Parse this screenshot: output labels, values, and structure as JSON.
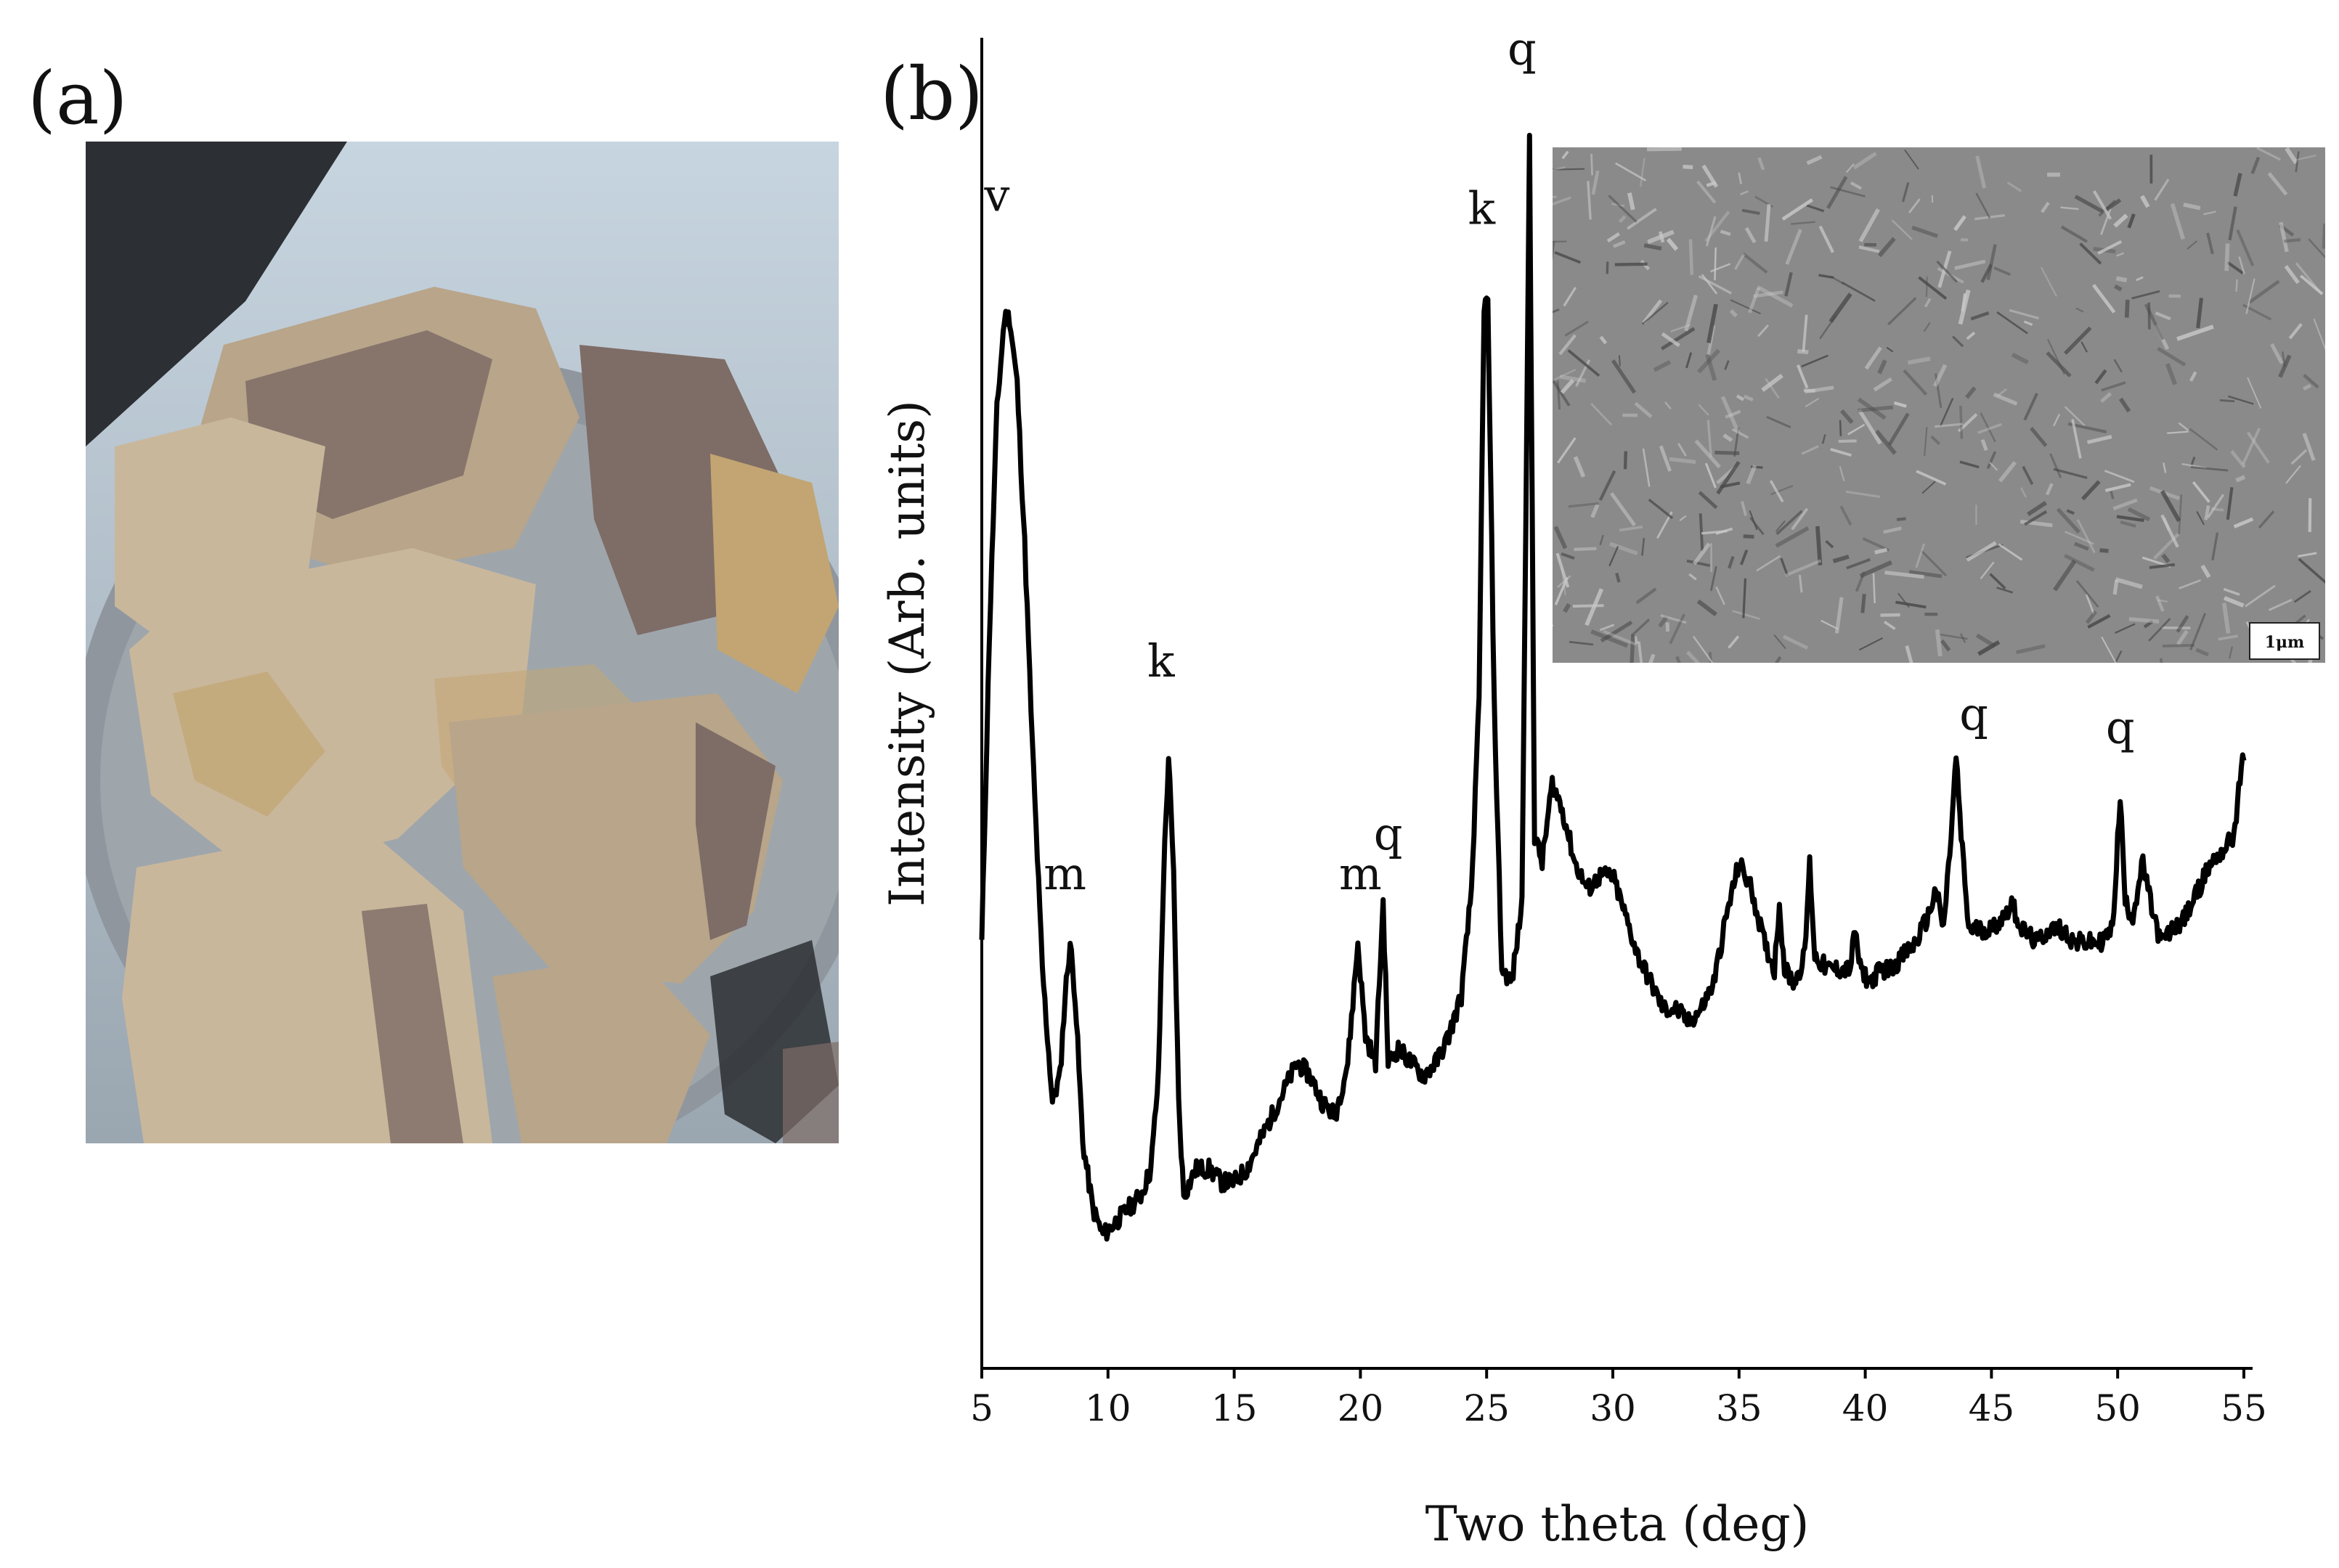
{
  "panels": {
    "a_label": "(a)",
    "b_label": "(b)"
  },
  "photo": {
    "subject": "clay-shale-rock-fragments",
    "colors": {
      "background_top": "#c7d5e0",
      "dark_corner": "#2c2f33",
      "dish_rim": "#8f969e",
      "rock_tan": "#b8a58a",
      "rock_light": "#c9b79c",
      "rock_purple": "#7e6c66",
      "rock_yellow": "#c2a572"
    }
  },
  "inset": {
    "type": "sem-micrograph",
    "scale_bar_label": "1μm",
    "colors": {
      "base": "#8a8a8a",
      "light": "#c8c8c8",
      "dark": "#4a4a4a"
    }
  },
  "chart_data": {
    "type": "line",
    "title": "",
    "xlabel": "Two theta (deg)",
    "ylabel": "Intensity (Arb. units)",
    "xlim": [
      5,
      55
    ],
    "ylim": [
      0,
      100
    ],
    "xticks": [
      5,
      10,
      15,
      20,
      25,
      30,
      35,
      40,
      45,
      50,
      55
    ],
    "y_tick_labels": false,
    "grid": false,
    "legend": "none",
    "line_color": "#000000",
    "series": [
      {
        "points": [
          [
            5.0,
            32
          ],
          [
            5.3,
            55
          ],
          [
            5.6,
            72
          ],
          [
            5.9,
            79
          ],
          [
            6.1,
            79
          ],
          [
            6.4,
            74
          ],
          [
            6.7,
            62
          ],
          [
            7.0,
            47
          ],
          [
            7.4,
            30
          ],
          [
            7.8,
            20
          ],
          [
            8.1,
            22
          ],
          [
            8.3,
            28
          ],
          [
            8.5,
            32
          ],
          [
            8.7,
            28
          ],
          [
            9.0,
            17
          ],
          [
            9.4,
            12
          ],
          [
            9.8,
            10
          ],
          [
            10.3,
            11
          ],
          [
            10.8,
            12
          ],
          [
            11.3,
            13
          ],
          [
            11.7,
            15
          ],
          [
            12.0,
            22
          ],
          [
            12.2,
            37
          ],
          [
            12.4,
            46
          ],
          [
            12.6,
            37
          ],
          [
            12.8,
            20
          ],
          [
            13.0,
            13
          ],
          [
            13.5,
            15
          ],
          [
            14.0,
            15
          ],
          [
            14.5,
            14
          ],
          [
            15.0,
            14
          ],
          [
            15.5,
            15
          ],
          [
            16.0,
            17
          ],
          [
            16.5,
            19
          ],
          [
            17.0,
            21
          ],
          [
            17.5,
            23
          ],
          [
            18.0,
            22
          ],
          [
            18.5,
            20
          ],
          [
            19.0,
            19
          ],
          [
            19.5,
            23
          ],
          [
            19.9,
            32
          ],
          [
            20.2,
            25
          ],
          [
            20.6,
            23
          ],
          [
            20.9,
            35
          ],
          [
            21.1,
            23
          ],
          [
            21.5,
            24
          ],
          [
            22.0,
            23
          ],
          [
            22.5,
            22
          ],
          [
            23.0,
            23
          ],
          [
            23.5,
            25
          ],
          [
            24.0,
            28
          ],
          [
            24.4,
            36
          ],
          [
            24.7,
            50
          ],
          [
            24.9,
            80
          ],
          [
            25.05,
            80
          ],
          [
            25.3,
            50
          ],
          [
            25.6,
            30
          ],
          [
            26.0,
            29
          ],
          [
            26.4,
            35
          ],
          [
            26.7,
            92
          ],
          [
            26.9,
            40
          ],
          [
            27.2,
            38
          ],
          [
            27.6,
            44
          ],
          [
            28.0,
            42
          ],
          [
            28.5,
            38
          ],
          [
            29.0,
            36
          ],
          [
            29.5,
            37
          ],
          [
            30.0,
            37
          ],
          [
            30.5,
            34
          ],
          [
            31.0,
            31
          ],
          [
            31.5,
            29
          ],
          [
            32.0,
            27
          ],
          [
            32.5,
            27
          ],
          [
            33.0,
            26
          ],
          [
            33.5,
            27
          ],
          [
            34.0,
            29
          ],
          [
            34.5,
            34
          ],
          [
            35.0,
            38
          ],
          [
            35.5,
            36
          ],
          [
            36.0,
            32
          ],
          [
            36.4,
            30
          ],
          [
            36.6,
            35
          ],
          [
            36.8,
            30
          ],
          [
            37.2,
            29
          ],
          [
            37.6,
            31
          ],
          [
            37.8,
            38
          ],
          [
            38.0,
            31
          ],
          [
            38.5,
            30
          ],
          [
            39.0,
            30
          ],
          [
            39.4,
            30
          ],
          [
            39.6,
            33
          ],
          [
            39.8,
            30
          ],
          [
            40.2,
            29
          ],
          [
            40.6,
            30
          ],
          [
            41.0,
            30
          ],
          [
            41.5,
            31
          ],
          [
            42.0,
            32
          ],
          [
            42.5,
            34
          ],
          [
            42.8,
            36
          ],
          [
            43.1,
            33
          ],
          [
            43.4,
            40
          ],
          [
            43.6,
            46
          ],
          [
            43.8,
            40
          ],
          [
            44.1,
            33
          ],
          [
            44.5,
            33
          ],
          [
            45.0,
            33
          ],
          [
            45.5,
            34
          ],
          [
            45.8,
            35
          ],
          [
            46.2,
            33
          ],
          [
            46.8,
            32
          ],
          [
            47.3,
            33
          ],
          [
            47.8,
            33
          ],
          [
            48.3,
            32
          ],
          [
            48.8,
            32
          ],
          [
            49.3,
            32
          ],
          [
            49.8,
            33
          ],
          [
            50.1,
            43
          ],
          [
            50.3,
            35
          ],
          [
            50.6,
            34
          ],
          [
            51.0,
            38
          ],
          [
            51.3,
            35
          ],
          [
            51.7,
            32
          ],
          [
            52.2,
            33
          ],
          [
            52.7,
            34
          ],
          [
            53.2,
            36
          ],
          [
            53.7,
            38
          ],
          [
            54.2,
            39
          ],
          [
            54.6,
            40
          ],
          [
            54.9,
            45
          ],
          [
            55.0,
            46
          ]
        ]
      }
    ],
    "annotations": [
      {
        "text": "v",
        "x": 5.6,
        "y": 87
      },
      {
        "text": "m",
        "x": 8.3,
        "y": 36
      },
      {
        "text": "k",
        "x": 12.1,
        "y": 52
      },
      {
        "text": "m",
        "x": 20.0,
        "y": 36
      },
      {
        "text": "q",
        "x": 21.1,
        "y": 39
      },
      {
        "text": "k",
        "x": 24.8,
        "y": 86
      },
      {
        "text": "q",
        "x": 26.4,
        "y": 98
      },
      {
        "text": "q",
        "x": 44.3,
        "y": 48
      },
      {
        "text": "q",
        "x": 50.1,
        "y": 47
      }
    ]
  }
}
